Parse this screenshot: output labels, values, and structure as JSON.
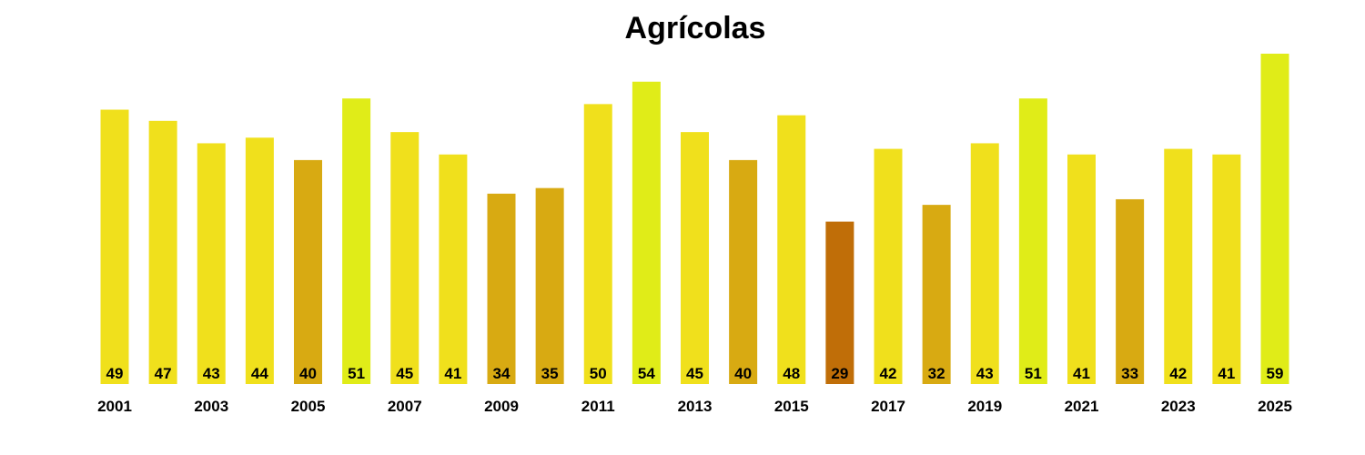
{
  "chart_data": {
    "type": "bar",
    "title": "Agrícolas",
    "xlabel": "",
    "ylabel": "",
    "ylim": [
      0,
      59
    ],
    "grid": false,
    "categories": [
      "2001",
      "2002",
      "2003",
      "2004",
      "2005",
      "2006",
      "2007",
      "2008",
      "2009",
      "2010",
      "2011",
      "2012",
      "2013",
      "2014",
      "2015",
      "2016",
      "2017",
      "2018",
      "2019",
      "2020",
      "2021",
      "2022",
      "2023",
      "2024",
      "2025"
    ],
    "tick_labels": [
      "2001",
      "2003",
      "2005",
      "2007",
      "2009",
      "2011",
      "2013",
      "2015",
      "2017",
      "2019",
      "2021",
      "2023",
      "2025"
    ],
    "values": [
      49,
      47,
      43,
      44,
      40,
      51,
      45,
      41,
      34,
      35,
      50,
      54,
      45,
      40,
      48,
      29,
      42,
      32,
      43,
      51,
      41,
      33,
      42,
      41,
      59
    ],
    "colors": {
      "high": "#e0ec18",
      "mid": "#f0e01c",
      "low": "#d8aa12",
      "lowest": "#c06e08"
    }
  }
}
